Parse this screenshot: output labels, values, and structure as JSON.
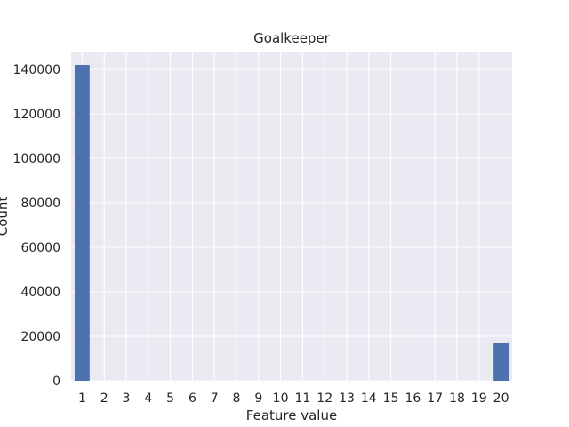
{
  "colors": {
    "plot_background": "#EAEAF2",
    "grid": "#FFFFFF",
    "bar": "#4C72B0",
    "text": "#262626"
  },
  "chart_data": {
    "type": "bar",
    "title": "Goalkeeper",
    "xlabel": "Feature value",
    "ylabel": "Count",
    "categories": [
      "1",
      "2",
      "3",
      "4",
      "5",
      "6",
      "7",
      "8",
      "9",
      "10",
      "11",
      "12",
      "13",
      "14",
      "15",
      "16",
      "17",
      "18",
      "19",
      "20"
    ],
    "values": [
      142000,
      0,
      0,
      0,
      0,
      0,
      0,
      0,
      0,
      0,
      0,
      0,
      0,
      0,
      0,
      0,
      0,
      0,
      0,
      16800
    ],
    "ylim": [
      0,
      148000
    ],
    "yticks": [
      0,
      20000,
      40000,
      60000,
      80000,
      100000,
      120000,
      140000
    ],
    "ytick_labels": [
      "0",
      "20000",
      "40000",
      "60000",
      "80000",
      "100000",
      "120000",
      "140000"
    ],
    "grid": true,
    "legend": null
  }
}
